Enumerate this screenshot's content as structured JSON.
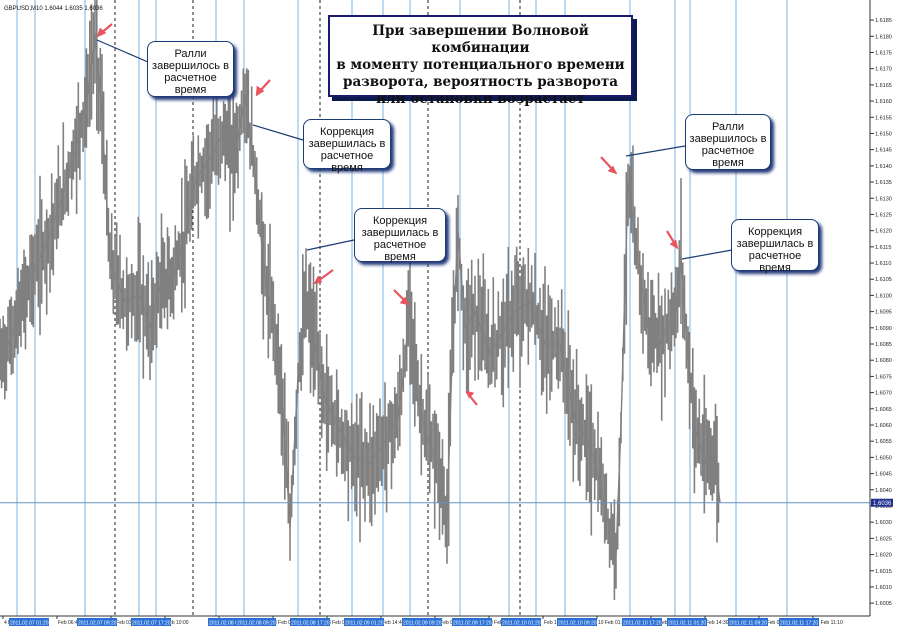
{
  "chart_data": {
    "type": "line",
    "instrument": "GBPUSD,M10",
    "header": "GBPUSD,M10  1.6044 1.6035 1.6036",
    "y_ticks": [
      "1.6185",
      "1.6180",
      "1.6175",
      "1.6170",
      "1.6165",
      "1.6160",
      "1.6155",
      "1.6150",
      "1.6145",
      "1.6140",
      "1.6135",
      "1.6130",
      "1.6125",
      "1.6120",
      "1.6115",
      "1.6110",
      "1.6105",
      "1.6100",
      "1.6095",
      "1.6090",
      "1.6085",
      "1.6080",
      "1.6075",
      "1.6070",
      "1.6065",
      "1.6060",
      "1.6055",
      "1.6050",
      "1.6045",
      "1.6040",
      "1.6035",
      "1.6030",
      "1.6025",
      "1.6020",
      "1.6015",
      "1.6010",
      "1.6005"
    ],
    "ylim": [
      1.60035,
      1.61875
    ],
    "current_price": "1.6036",
    "current_price_value": 1.6036,
    "x_ticks": [
      "4 Feb 2011",
      "Feb 06:40",
      "7 Feb 03:20",
      "Feb 10:00",
      "Feb 17:00",
      "8 Feb 00:00",
      "8 Feb 07:00",
      "Feb 14:40",
      "9 Feb 04:20",
      "9 Feb 11:10",
      "Feb 18:00",
      "10 Feb 01:00",
      "10 Feb 07:40",
      "Feb 14:30",
      "11 Feb 04:20",
      "11 Feb 11:10"
    ],
    "time_markers": [
      "2011.02.07 01:20",
      "2011.02.07 09:20",
      "2011.02.07 17:20",
      "2011.02.08 01:20",
      "2011.02.08 09:20",
      "2011.02.08 17:20",
      "2011.02.09 01:20",
      "2011.02.09 09:20",
      "2011.02.09 17:20",
      "2011.02.10 01:20",
      "2011.02.10 09:20",
      "2011.02.10 17:20",
      "2011.02.11 01:20",
      "2011.02.11 09:20",
      "2011.02.11 17:20"
    ],
    "series": [
      {
        "x": [
          0,
          8,
          18,
          30,
          45,
          60,
          75,
          88,
          95,
          102,
          110,
          125,
          140,
          150,
          160,
          172,
          185,
          195,
          205,
          215,
          222,
          230,
          238,
          245,
          255,
          265,
          275,
          283,
          290,
          298,
          306,
          315,
          325,
          340,
          355,
          370,
          385,
          398,
          405,
          410,
          418,
          428,
          438,
          447,
          452,
          458,
          465,
          475,
          490,
          505,
          515,
          530,
          545,
          560,
          575,
          588,
          598,
          608,
          616,
          621,
          628,
          638,
          648,
          660,
          670,
          676,
          681,
          688,
          696,
          706,
          714,
          720
        ],
        "y": [
          1.608,
          1.6085,
          1.6093,
          1.6105,
          1.6115,
          1.6128,
          1.6145,
          1.6162,
          1.6181,
          1.6155,
          1.611,
          1.6098,
          1.61,
          1.609,
          1.6103,
          1.6105,
          1.6118,
          1.6135,
          1.614,
          1.6145,
          1.615,
          1.6145,
          1.6148,
          1.6162,
          1.6138,
          1.6105,
          1.609,
          1.6065,
          1.6028,
          1.6075,
          1.6098,
          1.6085,
          1.6068,
          1.6058,
          1.605,
          1.6048,
          1.6055,
          1.6062,
          1.608,
          1.6099,
          1.6068,
          1.6055,
          1.6048,
          1.603,
          1.608,
          1.612,
          1.609,
          1.6095,
          1.6082,
          1.609,
          1.6095,
          1.6098,
          1.6085,
          1.6085,
          1.6062,
          1.6055,
          1.6045,
          1.603,
          1.602,
          1.606,
          1.6135,
          1.611,
          1.609,
          1.6085,
          1.6092,
          1.6095,
          1.6112,
          1.608,
          1.6058,
          1.6048,
          1.6052,
          1.6036
        ]
      }
    ]
  },
  "main_note": {
    "line1": "При завершении Волновой комбинации",
    "line2": "в моменту потенциального времени",
    "line3": "разворота, вероятность разворота",
    "line4": "или остановки возрастает"
  },
  "callouts": [
    {
      "line1": "Ралли",
      "line2": "завершилось в",
      "line3": "расчетное",
      "line4": "время"
    },
    {
      "line1": "Коррекция",
      "line2": "завершилась в",
      "line3": "расчетное",
      "line4": "время"
    },
    {
      "line1": "Коррекция",
      "line2": "завершилась в",
      "line3": "расчетное",
      "line4": "время"
    },
    {
      "line1": "Ралли",
      "line2": "завершилось в",
      "line3": "расчетное",
      "line4": "время"
    },
    {
      "line1": "Коррекция",
      "line2": "завершилась в",
      "line3": "расчетное",
      "line4": "время"
    }
  ],
  "colors": {
    "price": "#808080",
    "cyclic_line": "#7ab6e6",
    "dashed_line": "#1c1c1c",
    "arrow": "#e8555f",
    "current_price_line": "#6f8fc4",
    "current_price_label_bg": "#1f2f8f",
    "time_label_bg": "#2a6fd6"
  }
}
